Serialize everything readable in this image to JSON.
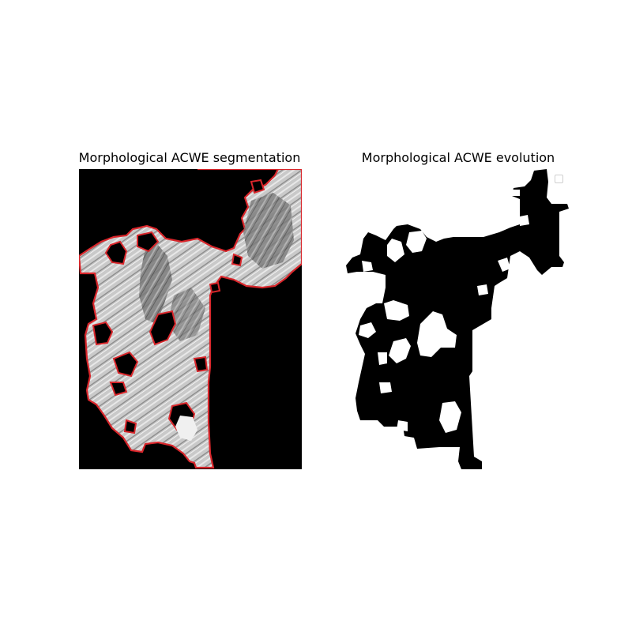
{
  "figure": {
    "left_title": "Morphological ACWE segmentation",
    "right_title": "Morphological ACWE evolution"
  },
  "colors": {
    "contour": "#d9262b",
    "background": "#000000",
    "region_light": "#c8c8c8",
    "mask_fill": "#000000",
    "mask_background": "#ffffff"
  },
  "legend": {
    "entries": []
  }
}
